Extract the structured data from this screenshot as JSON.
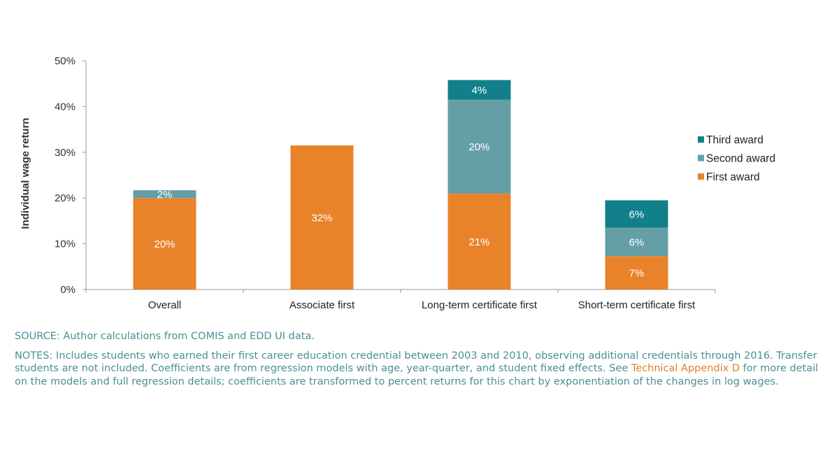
{
  "chart_data": {
    "type": "bar",
    "stacked": true,
    "categories": [
      "Overall",
      "Associate first",
      "Long-term certificate first",
      "Short-term certificate first"
    ],
    "series": [
      {
        "name": "First award",
        "color": "#e8832a",
        "values": [
          20,
          31.5,
          21,
          7.3
        ],
        "labels": [
          "20%",
          "32%",
          "21%",
          "7%"
        ]
      },
      {
        "name": "Second award",
        "color": "#659fa6",
        "values": [
          1.7,
          0,
          20.5,
          6.2
        ],
        "labels": [
          "2%",
          "",
          "20%",
          "6%"
        ]
      },
      {
        "name": "Third award",
        "color": "#12808a",
        "values": [
          0,
          0,
          4.3,
          6
        ],
        "labels": [
          "",
          "",
          "4%",
          "6%"
        ]
      }
    ],
    "ylabel": "Individual wage return",
    "xlabel": "",
    "ylim": [
      0,
      50
    ],
    "yticks": [
      "0%",
      "10%",
      "20%",
      "30%",
      "40%",
      "50%"
    ],
    "legend": [
      "Third award",
      "Second award",
      "First award"
    ],
    "legend_position": "right"
  },
  "notes": {
    "source": "SOURCE: Author calculations from COMIS and EDD UI data.",
    "notes_before": "NOTES: Includes students who earned their first career education credential between 2003 and 2010, observing additional credentials through 2016. Transfer students are not included. Coefficients are from regression models with age, year-quarter, and student fixed effects. See ",
    "link_text": "Technical Appendix D",
    "notes_after": " for more detail on the models and full regression details; coefficients are transformed to percent returns for this chart by exponentiation of the changes in log wages."
  }
}
